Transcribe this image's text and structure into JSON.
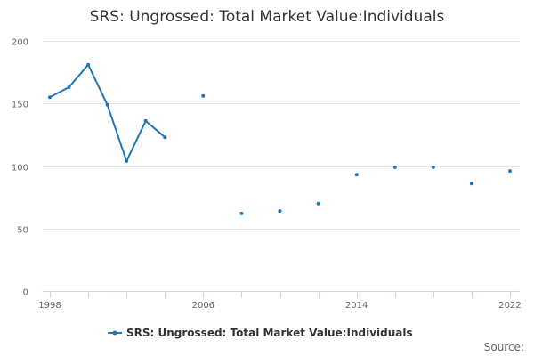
{
  "chart_data": {
    "type": "line",
    "title": "SRS: Ungrossed: Total Market Value:Individuals",
    "xlabel": "",
    "ylabel": "",
    "xlim": [
      1998,
      2022
    ],
    "ylim": [
      0,
      200
    ],
    "x_ticks": [
      1998,
      2006,
      2014,
      2022
    ],
    "x_minor_ticks": [
      1998,
      2000,
      2002,
      2004,
      2006,
      2008,
      2010,
      2012,
      2014,
      2016,
      2018,
      2020,
      2022
    ],
    "y_ticks": [
      0,
      50,
      100,
      150,
      200
    ],
    "series": [
      {
        "name": "SRS: Ungrossed: Total Market Value:Individuals",
        "color": "#1f77b4",
        "points": [
          {
            "x": 1998,
            "y": 155
          },
          {
            "x": 1999,
            "y": 163
          },
          {
            "x": 2000,
            "y": 181
          },
          {
            "x": 2001,
            "y": 149
          },
          {
            "x": 2002,
            "y": 104
          },
          {
            "x": 2003,
            "y": 136
          },
          {
            "x": 2004,
            "y": 123
          },
          {
            "x": 2006,
            "y": 156
          },
          {
            "x": 2008,
            "y": 62
          },
          {
            "x": 2010,
            "y": 64
          },
          {
            "x": 2012,
            "y": 70
          },
          {
            "x": 2014,
            "y": 93
          },
          {
            "x": 2016,
            "y": 99
          },
          {
            "x": 2018,
            "y": 99
          },
          {
            "x": 2020,
            "y": 86
          },
          {
            "x": 2022,
            "y": 96
          }
        ]
      }
    ],
    "legend": "bottom-center",
    "grid": true
  },
  "source_label": "Source:"
}
